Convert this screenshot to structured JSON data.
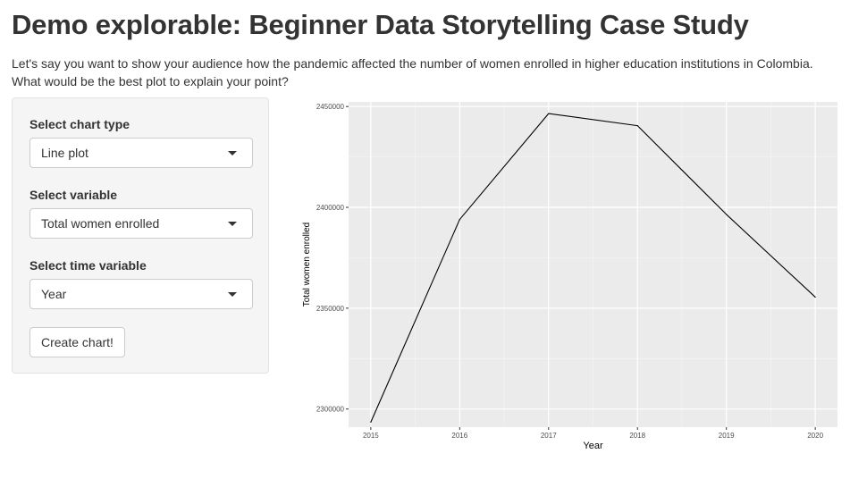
{
  "page": {
    "title": "Demo explorable: Beginner Data Storytelling Case Study",
    "intro": "Let's say you want to show your audience how the pandemic affected the number of women enrolled in higher education institutions in Colombia. What would be the best plot to explain your point?"
  },
  "controls": {
    "chart_type": {
      "label": "Select chart type",
      "value": "Line plot"
    },
    "variable": {
      "label": "Select variable",
      "value": "Total women enrolled"
    },
    "time_variable": {
      "label": "Select time variable",
      "value": "Year"
    },
    "create_button": "Create chart!"
  },
  "chart_data": {
    "type": "line",
    "x": [
      2015,
      2016,
      2017,
      2018,
      2019,
      2020
    ],
    "series": [
      {
        "values": [
          2293500,
          2394000,
          2446500,
          2440500,
          2396500,
          2355500
        ]
      }
    ],
    "xlabel": "Year",
    "ylabel": "Total women enrolled",
    "xticks": [
      "2015",
      "2016",
      "2017",
      "2018",
      "2019",
      "2020"
    ],
    "yticks": [
      "2300000",
      "2350000",
      "2400000",
      "2450000"
    ],
    "xlim": [
      2014.75,
      2020.25
    ],
    "ylim": [
      2291000,
      2452300
    ],
    "grid": true,
    "line_color": "#000000",
    "panel_color": "#ebebeb"
  }
}
